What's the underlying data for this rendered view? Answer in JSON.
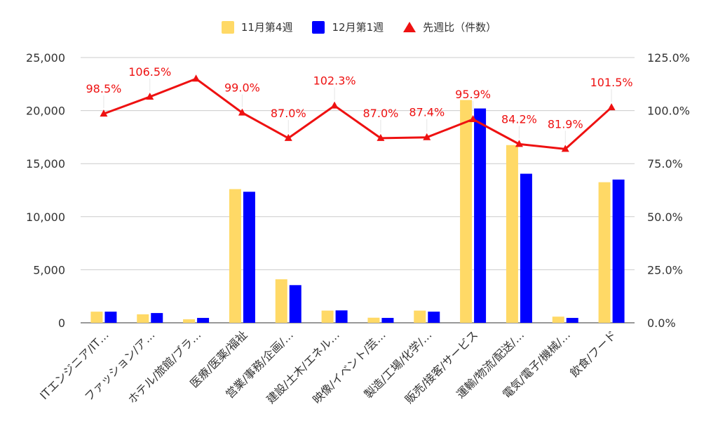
{
  "chart_data": {
    "type": "bar",
    "categories": [
      "ITエンジニア/IT…",
      "ファッション/ア…",
      "ホテル/旅館/ブラ…",
      "医療/医薬/福祉",
      "営業/事務/企画/…",
      "建設/土木/エネル…",
      "映像/イベント/芸…",
      "製造/工場/化学/…",
      "販売/接客/サービス",
      "運輸/物流/配送/…",
      "電気/電子/機械/…",
      "飲食/フード"
    ],
    "series": [
      {
        "name": "11月第4週",
        "color": "#ffd966",
        "axis": "left",
        "values": [
          1050,
          800,
          330,
          12600,
          4100,
          1150,
          480,
          1150,
          21000,
          16750,
          580,
          13250
        ]
      },
      {
        "name": "12月第1週",
        "color": "#0000ff",
        "axis": "left",
        "values": [
          1050,
          920,
          460,
          12350,
          3550,
          1170,
          460,
          1050,
          20200,
          14050,
          460,
          13500
        ]
      }
    ],
    "line_series": {
      "name": "先週比（件数）",
      "color": "#ee1111",
      "axis": "right",
      "values": [
        98.5,
        106.5,
        115.0,
        99.0,
        87.0,
        102.3,
        87.0,
        87.4,
        95.9,
        84.2,
        81.9,
        101.5
      ],
      "labels": [
        "98.5%",
        "106.5%",
        "",
        "99.0%",
        "87.0%",
        "102.3%",
        "87.0%",
        "87.4%",
        "95.9%",
        "84.2%",
        "81.9%",
        "101.5%"
      ]
    },
    "left_axis": {
      "ylim": [
        0,
        25000
      ],
      "ticks": [
        "0",
        "5,000",
        "10,000",
        "15,000",
        "20,000",
        "25,000"
      ]
    },
    "right_axis": {
      "ylim": [
        0,
        125
      ],
      "ticks": [
        "0.0%",
        "25.0%",
        "50.0%",
        "75.0%",
        "100.0%",
        "125.0%"
      ]
    },
    "legend_position": "top",
    "grid": true
  }
}
